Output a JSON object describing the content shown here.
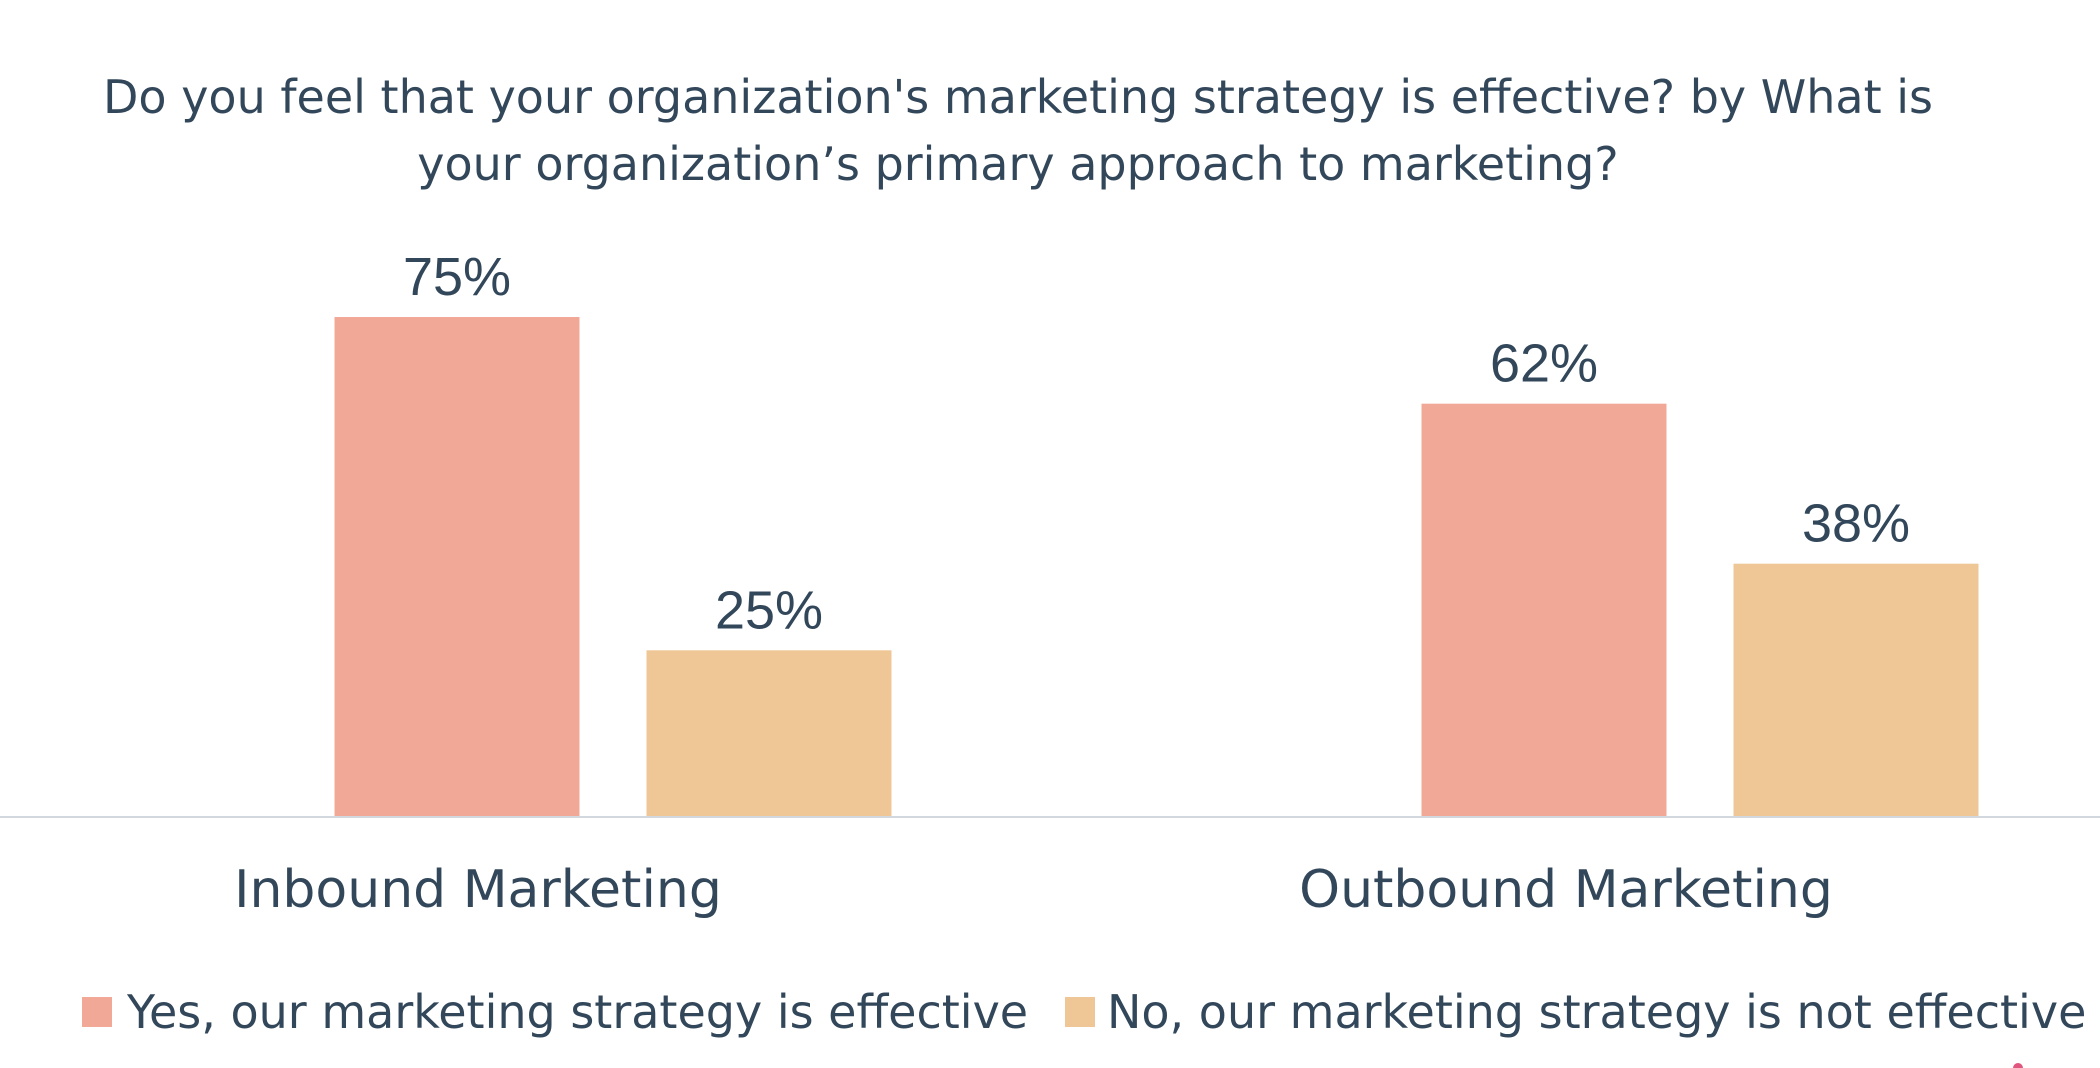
{
  "chart_data": {
    "type": "bar",
    "title": "Do you feel that your organization's marketing strategy is effective? by What is your organization’s primary approach to marketing?",
    "title_lines": [
      "Do you feel that your organization's marketing strategy is effective? by What is",
      "your organization’s primary approach to marketing?"
    ],
    "categories": [
      "Inbound Marketing",
      "Outbound Marketing"
    ],
    "series": [
      {
        "name": "Yes, our marketing strategy is effective",
        "values": [
          75,
          62
        ],
        "labels": [
          "75%",
          "62%"
        ],
        "color": "#f2a896"
      },
      {
        "name": "No, our marketing strategy is not effective",
        "values": [
          25,
          38
        ],
        "labels": [
          "25%",
          "38%"
        ],
        "color": "#efc695"
      }
    ],
    "ylim": [
      0,
      75
    ],
    "unit": "%",
    "grid": false,
    "legend_position": "bottom",
    "xlabel": "",
    "ylabel": ""
  },
  "colors": {
    "text": "#33475b",
    "axis": "#d3d8de",
    "accent_mark": "#e0567e"
  }
}
